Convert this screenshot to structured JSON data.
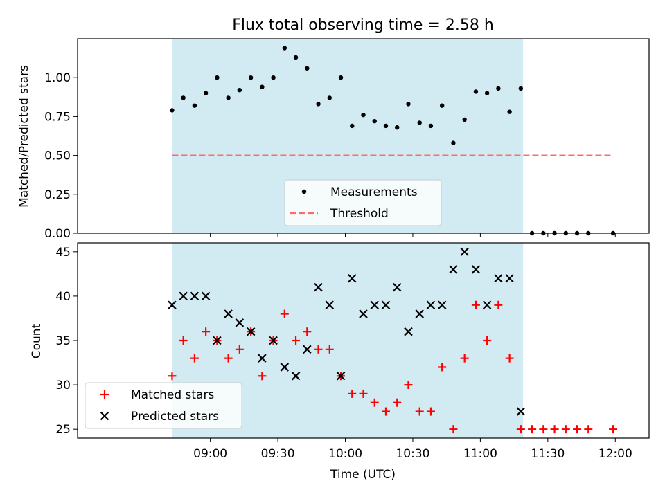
{
  "title": "Flux total observing time = 2.58 h",
  "xlabel": "Time (UTC)",
  "x_ticks": [
    "09:00",
    "09:30",
    "10:00",
    "10:30",
    "11:00",
    "11:30",
    "12:00"
  ],
  "highlight_color": "#add8e6",
  "chart_data": [
    {
      "type": "scatter",
      "ylabel": "Matched/Predicted stars",
      "ylim": [
        0,
        1.25
      ],
      "y_ticks": [
        "0.00",
        "0.25",
        "0.50",
        "0.75",
        "1.00"
      ],
      "highlight_span": [
        "08:43",
        "11:19"
      ],
      "legend": {
        "placement": "lower center",
        "entries": [
          "Measurements",
          "Threshold"
        ]
      },
      "series": [
        {
          "name": "Measurements",
          "marker": "dot",
          "color": "#000000",
          "points": [
            [
              "08:43",
              0.79
            ],
            [
              "08:48",
              0.87
            ],
            [
              "08:53",
              0.82
            ],
            [
              "08:58",
              0.9
            ],
            [
              "09:03",
              1.0
            ],
            [
              "09:08",
              0.87
            ],
            [
              "09:13",
              0.92
            ],
            [
              "09:18",
              1.0
            ],
            [
              "09:23",
              0.94
            ],
            [
              "09:28",
              1.0
            ],
            [
              "09:33",
              1.19
            ],
            [
              "09:38",
              1.13
            ],
            [
              "09:43",
              1.06
            ],
            [
              "09:48",
              0.83
            ],
            [
              "09:53",
              0.87
            ],
            [
              "09:58",
              1.0
            ],
            [
              "10:03",
              0.69
            ],
            [
              "10:08",
              0.76
            ],
            [
              "10:13",
              0.72
            ],
            [
              "10:18",
              0.69
            ],
            [
              "10:23",
              0.68
            ],
            [
              "10:28",
              0.83
            ],
            [
              "10:33",
              0.71
            ],
            [
              "10:38",
              0.69
            ],
            [
              "10:43",
              0.82
            ],
            [
              "10:48",
              0.58
            ],
            [
              "10:53",
              0.73
            ],
            [
              "10:58",
              0.91
            ],
            [
              "11:03",
              0.9
            ],
            [
              "11:08",
              0.93
            ],
            [
              "11:13",
              0.78
            ],
            [
              "11:18",
              0.93
            ],
            [
              "11:23",
              0.0
            ],
            [
              "11:28",
              0.0
            ],
            [
              "11:33",
              0.0
            ],
            [
              "11:38",
              0.0
            ],
            [
              "11:43",
              0.0
            ],
            [
              "11:48",
              0.0
            ],
            [
              "11:59",
              0.0
            ]
          ]
        },
        {
          "name": "Threshold",
          "line": "dashed",
          "color": "#ff6b6b",
          "points": [
            [
              "08:43",
              0.5
            ],
            [
              "11:59",
              0.5
            ]
          ]
        }
      ]
    },
    {
      "type": "scatter",
      "ylabel": "Count",
      "ylim": [
        24,
        46
      ],
      "y_ticks": [
        "25",
        "30",
        "35",
        "40",
        "45"
      ],
      "highlight_span": [
        "08:43",
        "11:19"
      ],
      "legend": {
        "placement": "lower left",
        "entries": [
          "Matched stars",
          "Predicted stars"
        ]
      },
      "series": [
        {
          "name": "Matched stars",
          "marker": "plus",
          "color": "#ff0000",
          "points": [
            [
              "08:43",
              31
            ],
            [
              "08:48",
              35
            ],
            [
              "08:53",
              33
            ],
            [
              "08:58",
              36
            ],
            [
              "09:03",
              35
            ],
            [
              "09:08",
              33
            ],
            [
              "09:13",
              34
            ],
            [
              "09:18",
              36
            ],
            [
              "09:23",
              31
            ],
            [
              "09:28",
              35
            ],
            [
              "09:33",
              38
            ],
            [
              "09:38",
              35
            ],
            [
              "09:43",
              36
            ],
            [
              "09:48",
              34
            ],
            [
              "09:53",
              34
            ],
            [
              "09:58",
              31
            ],
            [
              "10:03",
              29
            ],
            [
              "10:08",
              29
            ],
            [
              "10:13",
              28
            ],
            [
              "10:18",
              27
            ],
            [
              "10:23",
              28
            ],
            [
              "10:28",
              30
            ],
            [
              "10:33",
              27
            ],
            [
              "10:38",
              27
            ],
            [
              "10:43",
              32
            ],
            [
              "10:48",
              25
            ],
            [
              "10:53",
              33
            ],
            [
              "10:58",
              39
            ],
            [
              "11:03",
              35
            ],
            [
              "11:08",
              39
            ],
            [
              "11:13",
              33
            ],
            [
              "11:18",
              25
            ],
            [
              "11:23",
              25
            ],
            [
              "11:28",
              25
            ],
            [
              "11:33",
              25
            ],
            [
              "11:38",
              25
            ],
            [
              "11:43",
              25
            ],
            [
              "11:48",
              25
            ],
            [
              "11:59",
              25
            ]
          ]
        },
        {
          "name": "Predicted stars",
          "marker": "x",
          "color": "#000000",
          "points": [
            [
              "08:43",
              39
            ],
            [
              "08:48",
              40
            ],
            [
              "08:53",
              40
            ],
            [
              "08:58",
              40
            ],
            [
              "09:03",
              35
            ],
            [
              "09:08",
              38
            ],
            [
              "09:13",
              37
            ],
            [
              "09:18",
              36
            ],
            [
              "09:23",
              33
            ],
            [
              "09:28",
              35
            ],
            [
              "09:33",
              32
            ],
            [
              "09:38",
              31
            ],
            [
              "09:43",
              34
            ],
            [
              "09:48",
              41
            ],
            [
              "09:53",
              39
            ],
            [
              "09:58",
              31
            ],
            [
              "10:03",
              42
            ],
            [
              "10:08",
              38
            ],
            [
              "10:13",
              39
            ],
            [
              "10:18",
              39
            ],
            [
              "10:23",
              41
            ],
            [
              "10:28",
              36
            ],
            [
              "10:33",
              38
            ],
            [
              "10:38",
              39
            ],
            [
              "10:43",
              39
            ],
            [
              "10:48",
              43
            ],
            [
              "10:53",
              45
            ],
            [
              "10:58",
              43
            ],
            [
              "11:03",
              39
            ],
            [
              "11:08",
              42
            ],
            [
              "11:13",
              42
            ],
            [
              "11:18",
              27
            ]
          ]
        }
      ]
    }
  ]
}
